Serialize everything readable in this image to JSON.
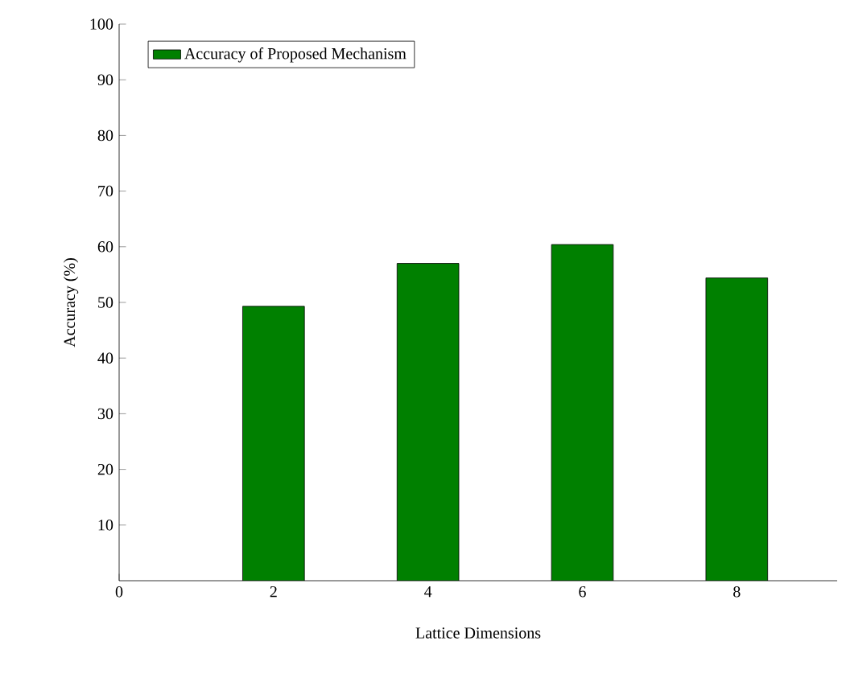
{
  "chart_data": {
    "type": "bar",
    "xlabel": "Lattice Dimensions",
    "ylabel": "Accuracy (%)",
    "x": [
      2,
      4,
      6,
      8
    ],
    "series": [
      {
        "name": "Accuracy of Proposed Mechanism",
        "color": "#008000",
        "values": [
          49.3,
          57,
          60.4,
          54.4
        ]
      }
    ],
    "xlim": [
      0,
      9.3
    ],
    "xticks": [
      0,
      2,
      4,
      6,
      8
    ],
    "ylim": [
      0,
      100
    ],
    "yticks": [
      10,
      20,
      30,
      40,
      50,
      60,
      70,
      80,
      90,
      100
    ],
    "legend": "top left",
    "grid": false
  }
}
